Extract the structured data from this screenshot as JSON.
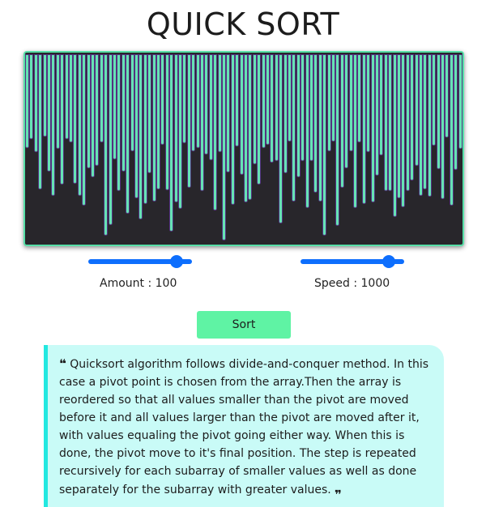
{
  "page": {
    "title": "QUICK SORT"
  },
  "visualizer": {
    "bar_color": "#66e3b4",
    "panel_background": "#28262b",
    "bar_values": [
      10,
      2,
      14,
      47,
      0,
      31,
      53,
      11,
      43,
      2,
      5,
      42,
      53,
      62,
      28,
      36,
      26,
      5,
      89,
      79,
      20,
      49,
      31,
      69,
      13,
      55,
      74,
      60,
      33,
      58,
      47,
      7,
      48,
      85,
      59,
      65,
      6,
      46,
      13,
      10,
      49,
      16,
      21,
      66,
      14,
      93,
      32,
      61,
      9,
      34,
      59,
      57,
      25,
      43,
      10,
      7,
      23,
      22,
      78,
      33,
      4,
      58,
      36,
      22,
      64,
      22,
      50,
      58,
      89,
      13,
      4,
      80,
      46,
      28,
      13,
      64,
      5,
      60,
      14,
      59,
      35,
      17,
      49,
      49,
      72,
      55,
      63,
      49,
      39,
      26,
      53,
      47,
      54,
      8,
      29,
      56,
      1,
      62,
      30,
      11
    ]
  },
  "controls": {
    "amount": {
      "label": "Amount : 100",
      "value": 100,
      "level": 0.9
    },
    "speed": {
      "label": "Speed : 1000",
      "value": 1000,
      "level": 0.9
    },
    "sort_label": "Sort"
  },
  "description": {
    "open_quote": "❝",
    "close_quote": "❝",
    "text": "Quicksort algorithm follows divide-and-conquer method. In this case a pivot point is chosen from the array.Then the array is reordered so that all values smaller than the pivot are moved before it and all values larger than the pivot are moved after it, with values equaling the pivot going either way. When this is done, the pivot move to it's final position. The step is repeated recursively for each subarray of smaller values as well as done separately for the subarray with greater values."
  },
  "colors": {
    "accent": "#0d6efd",
    "button": "#5ff3a4",
    "card": "#c9fbf7",
    "card_border": "#22e8e0"
  }
}
